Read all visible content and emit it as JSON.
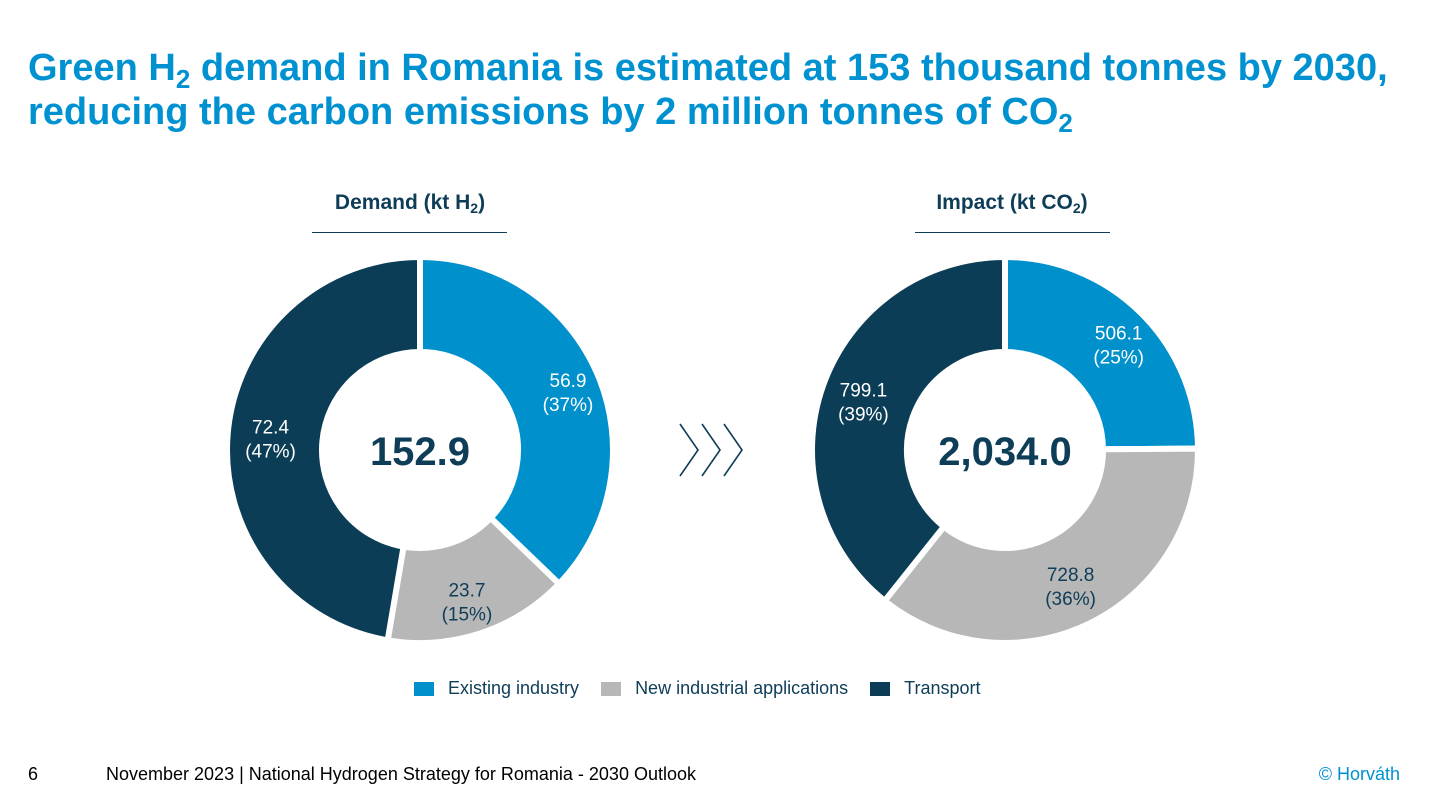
{
  "slide": {
    "title": {
      "part1": "Green H",
      "sub1": "2",
      "part2": " demand in Romania is estimated at 153 thousand tonnes by 2030, reducing the carbon emissions by 2 million tonnes of CO",
      "sub2": "2"
    },
    "footer": {
      "page_number": "6",
      "text": "November 2023 | National Hydrogen Strategy for Romania - 2030 Outlook",
      "brand": "© Horváth"
    },
    "arrow_icon": "triple-chevron-right-icon"
  },
  "colors": {
    "title": "#0091D0",
    "existing_industry": "#0090CC",
    "new_industrial_applications": "#B7B7B7",
    "transport": "#0B3D56",
    "heading_text": "#0E3D58"
  },
  "chart_data": [
    {
      "type": "pie",
      "title": {
        "main": "Demand (kt H",
        "sub": "2",
        "end": ")"
      },
      "center_total": "152.9",
      "slices": [
        {
          "category": "Existing industry",
          "value": 56.9,
          "value_label": "56.9",
          "percent_label": "(37%)"
        },
        {
          "category": "New industrial applications",
          "value": 23.7,
          "value_label": "23.7",
          "percent_label": "(15%)"
        },
        {
          "category": "Transport",
          "value": 72.4,
          "value_label": "72.4",
          "percent_label": "(47%)"
        }
      ]
    },
    {
      "type": "pie",
      "title": {
        "main": "Impact (kt CO",
        "sub": "2",
        "end": ")"
      },
      "center_total": "2,034.0",
      "slices": [
        {
          "category": "Existing industry",
          "value": 506.1,
          "value_label": "506.1",
          "percent_label": "(25%)"
        },
        {
          "category": "New industrial applications",
          "value": 728.8,
          "value_label": "728.8",
          "percent_label": "(36%)"
        },
        {
          "category": "Transport",
          "value": 799.1,
          "value_label": "799.1",
          "percent_label": "(39%)"
        }
      ]
    }
  ],
  "legend": {
    "placement": "bottom-center",
    "items": [
      {
        "label": "Existing industry",
        "color": "#0090CC"
      },
      {
        "label": "New industrial applications",
        "color": "#B7B7B7"
      },
      {
        "label": "Transport",
        "color": "#0B3D56"
      }
    ]
  }
}
